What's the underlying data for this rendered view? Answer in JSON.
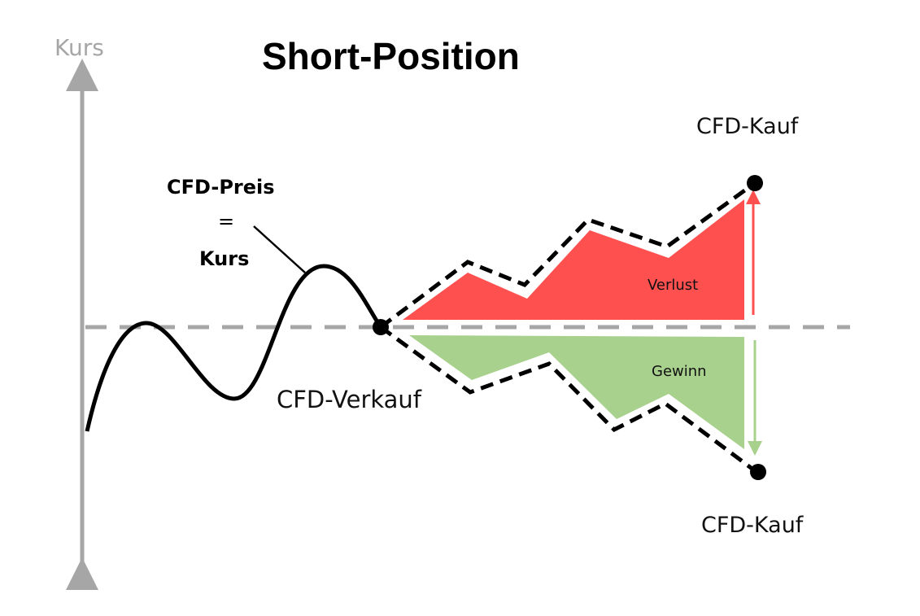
{
  "title": "Short-Position",
  "axis_label": "Kurs",
  "price_label": {
    "line1": "CFD-Preis",
    "line2": "=",
    "line3": "Kurs"
  },
  "sell_label": "CFD-Verkauf",
  "buy_top_label": "CFD-Kauf",
  "buy_bottom_label": "CFD-Kauf",
  "loss_label": "Verlust",
  "gain_label": "Gewinn",
  "colors": {
    "loss": "#ff5050",
    "gain": "#a9d18e",
    "axis": "#a6a6a6",
    "line": "#000000"
  }
}
